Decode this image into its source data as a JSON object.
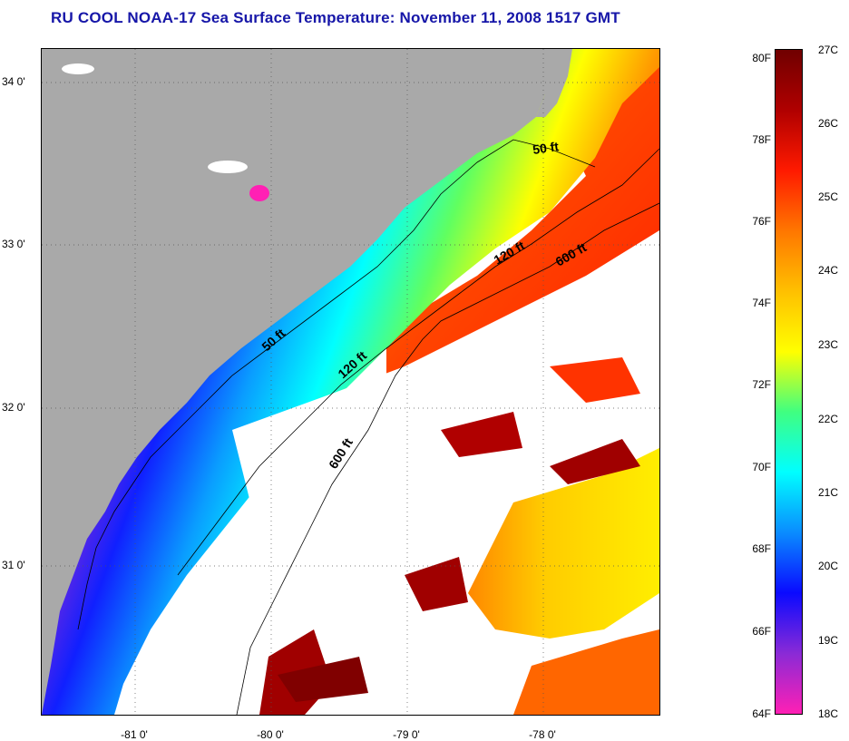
{
  "title": "RU COOL  NOAA-17  Sea Surface Temperature:  November 11, 2008 1517 GMT",
  "colors": {
    "land": "#a9a9a9",
    "title": "#1616a8",
    "cloud": "#ffffff"
  },
  "lat_ticks": [
    "34 0'",
    "33 0'",
    "32 0'",
    "31 0'"
  ],
  "lon_ticks": [
    "-81 0'",
    "-80 0'",
    "-79 0'",
    "-78 0'"
  ],
  "contour_labels": [
    "50 ft",
    "120 ft",
    "600 ft",
    "50 ft",
    "120 ft",
    "600 ft"
  ],
  "colorbar": {
    "fahrenheit": [
      "80F",
      "78F",
      "76F",
      "74F",
      "72F",
      "70F",
      "68F",
      "66F",
      "64F"
    ],
    "celsius": [
      "27C",
      "26C",
      "25C",
      "24C",
      "23C",
      "22C",
      "21C",
      "20C",
      "19C",
      "18C"
    ],
    "stops": [
      "#ff20b4",
      "#8a2ad6",
      "#0a0aff",
      "#0a8cff",
      "#00ffff",
      "#40ff80",
      "#ffff00",
      "#ffc000",
      "#ff7700",
      "#ff1a00",
      "#b00000",
      "#700000"
    ]
  }
}
